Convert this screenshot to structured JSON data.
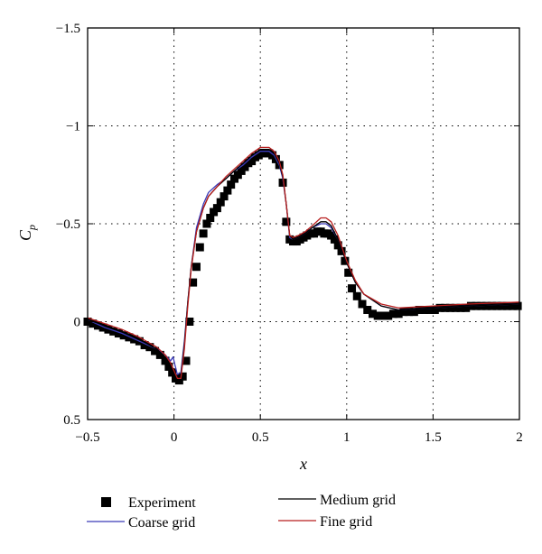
{
  "chart_data": {
    "type": "line",
    "title": "",
    "xlabel": "x",
    "ylabel": "C",
    "ylabel_subscript": "p",
    "xlim": [
      -0.5,
      2
    ],
    "ylim": [
      -1.5,
      0.5
    ],
    "y_inverted": true,
    "grid": true,
    "legend_position": "bottom",
    "x_ticks": [
      -0.5,
      0,
      0.5,
      1,
      1.5,
      2
    ],
    "x_tick_labels": [
      "−0.5",
      "0",
      "0.5",
      "1",
      "1.5",
      "2"
    ],
    "y_ticks": [
      -1.5,
      -1,
      -0.5,
      0,
      0.5
    ],
    "y_tick_labels": [
      "−1.5",
      "−1",
      "−0.5",
      "0",
      "0.5"
    ],
    "series": [
      {
        "name": "Experiment",
        "style": "markers",
        "color": "#000000",
        "x": [
          -0.5,
          -0.47,
          -0.44,
          -0.41,
          -0.38,
          -0.35,
          -0.32,
          -0.29,
          -0.26,
          -0.23,
          -0.2,
          -0.17,
          -0.14,
          -0.11,
          -0.08,
          -0.05,
          -0.03,
          -0.01,
          0.01,
          0.03,
          0.05,
          0.07,
          0.09,
          0.11,
          0.13,
          0.15,
          0.17,
          0.19,
          0.21,
          0.23,
          0.25,
          0.27,
          0.29,
          0.31,
          0.33,
          0.35,
          0.37,
          0.39,
          0.41,
          0.43,
          0.45,
          0.47,
          0.49,
          0.51,
          0.53,
          0.55,
          0.57,
          0.59,
          0.61,
          0.63,
          0.65,
          0.67,
          0.69,
          0.71,
          0.73,
          0.75,
          0.77,
          0.79,
          0.81,
          0.83,
          0.85,
          0.87,
          0.89,
          0.91,
          0.93,
          0.95,
          0.97,
          0.99,
          1.01,
          1.03,
          1.06,
          1.09,
          1.12,
          1.15,
          1.18,
          1.21,
          1.24,
          1.27,
          1.3,
          1.33,
          1.36,
          1.39,
          1.42,
          1.45,
          1.48,
          1.51,
          1.54,
          1.57,
          1.6,
          1.63,
          1.66,
          1.69,
          1.72,
          1.75,
          1.78,
          1.81,
          1.84,
          1.87,
          1.9,
          1.93,
          1.96,
          1.99
        ],
        "y": [
          0.0,
          0.01,
          0.02,
          0.03,
          0.04,
          0.05,
          0.06,
          0.07,
          0.08,
          0.09,
          0.1,
          0.12,
          0.13,
          0.15,
          0.17,
          0.2,
          0.23,
          0.26,
          0.29,
          0.3,
          0.28,
          0.2,
          0.0,
          -0.2,
          -0.28,
          -0.38,
          -0.45,
          -0.5,
          -0.53,
          -0.56,
          -0.58,
          -0.61,
          -0.64,
          -0.67,
          -0.7,
          -0.73,
          -0.75,
          -0.77,
          -0.79,
          -0.81,
          -0.82,
          -0.84,
          -0.85,
          -0.86,
          -0.86,
          -0.86,
          -0.85,
          -0.83,
          -0.8,
          -0.71,
          -0.51,
          -0.42,
          -0.41,
          -0.41,
          -0.42,
          -0.43,
          -0.44,
          -0.45,
          -0.45,
          -0.46,
          -0.46,
          -0.45,
          -0.45,
          -0.44,
          -0.42,
          -0.39,
          -0.36,
          -0.31,
          -0.25,
          -0.17,
          -0.13,
          -0.09,
          -0.06,
          -0.04,
          -0.03,
          -0.03,
          -0.03,
          -0.04,
          -0.04,
          -0.05,
          -0.05,
          -0.05,
          -0.06,
          -0.06,
          -0.06,
          -0.06,
          -0.07,
          -0.07,
          -0.07,
          -0.07,
          -0.07,
          -0.07,
          -0.08,
          -0.08,
          -0.08,
          -0.08,
          -0.08,
          -0.08,
          -0.08,
          -0.08,
          -0.08,
          -0.08
        ]
      },
      {
        "name": "Coarse grid",
        "style": "line",
        "color": "#3a3ab8",
        "x": [
          -0.5,
          -0.4,
          -0.3,
          -0.2,
          -0.1,
          -0.05,
          -0.02,
          -0.005,
          0.005,
          0.02,
          0.04,
          0.06,
          0.08,
          0.1,
          0.13,
          0.17,
          0.2,
          0.25,
          0.3,
          0.35,
          0.4,
          0.45,
          0.5,
          0.55,
          0.58,
          0.61,
          0.63,
          0.65,
          0.67,
          0.69,
          0.72,
          0.76,
          0.8,
          0.85,
          0.88,
          0.91,
          0.95,
          1.0,
          1.05,
          1.1,
          1.2,
          1.3,
          1.5,
          1.7,
          2.0
        ],
        "y": [
          -0.01,
          0.03,
          0.06,
          0.1,
          0.14,
          0.17,
          0.2,
          0.18,
          0.22,
          0.27,
          0.26,
          0.1,
          -0.1,
          -0.28,
          -0.48,
          -0.6,
          -0.66,
          -0.7,
          -0.73,
          -0.77,
          -0.8,
          -0.84,
          -0.87,
          -0.87,
          -0.85,
          -0.8,
          -0.73,
          -0.6,
          -0.43,
          -0.42,
          -0.43,
          -0.45,
          -0.48,
          -0.5,
          -0.5,
          -0.48,
          -0.42,
          -0.3,
          -0.2,
          -0.14,
          -0.08,
          -0.06,
          -0.07,
          -0.08,
          -0.09
        ]
      },
      {
        "name": "Medium grid",
        "style": "line",
        "color": "#000000",
        "x": [
          -0.5,
          -0.4,
          -0.3,
          -0.2,
          -0.1,
          -0.05,
          -0.02,
          0.0,
          0.02,
          0.04,
          0.06,
          0.08,
          0.1,
          0.13,
          0.17,
          0.2,
          0.25,
          0.3,
          0.35,
          0.4,
          0.45,
          0.5,
          0.55,
          0.58,
          0.61,
          0.63,
          0.65,
          0.67,
          0.69,
          0.72,
          0.76,
          0.8,
          0.85,
          0.88,
          0.91,
          0.95,
          1.0,
          1.05,
          1.1,
          1.2,
          1.3,
          1.5,
          1.7,
          2.0
        ],
        "y": [
          -0.01,
          0.02,
          0.05,
          0.09,
          0.14,
          0.18,
          0.22,
          0.26,
          0.29,
          0.28,
          0.12,
          -0.1,
          -0.28,
          -0.46,
          -0.58,
          -0.64,
          -0.69,
          -0.73,
          -0.77,
          -0.81,
          -0.85,
          -0.88,
          -0.88,
          -0.86,
          -0.81,
          -0.74,
          -0.6,
          -0.44,
          -0.42,
          -0.43,
          -0.45,
          -0.48,
          -0.51,
          -0.51,
          -0.49,
          -0.42,
          -0.3,
          -0.2,
          -0.14,
          -0.08,
          -0.06,
          -0.07,
          -0.08,
          -0.09
        ]
      },
      {
        "name": "Fine grid",
        "style": "line",
        "color": "#b81e1e",
        "x": [
          -0.5,
          -0.4,
          -0.3,
          -0.2,
          -0.1,
          -0.05,
          -0.02,
          0.0,
          0.02,
          0.04,
          0.06,
          0.08,
          0.1,
          0.13,
          0.17,
          0.2,
          0.25,
          0.3,
          0.35,
          0.4,
          0.45,
          0.5,
          0.55,
          0.58,
          0.61,
          0.63,
          0.65,
          0.67,
          0.69,
          0.72,
          0.76,
          0.8,
          0.85,
          0.88,
          0.91,
          0.95,
          1.0,
          1.05,
          1.1,
          1.2,
          1.3,
          1.5,
          1.7,
          2.0
        ],
        "y": [
          -0.02,
          0.01,
          0.04,
          0.08,
          0.13,
          0.17,
          0.21,
          0.25,
          0.29,
          0.29,
          0.14,
          -0.08,
          -0.27,
          -0.46,
          -0.58,
          -0.64,
          -0.69,
          -0.74,
          -0.78,
          -0.82,
          -0.86,
          -0.89,
          -0.89,
          -0.87,
          -0.82,
          -0.75,
          -0.6,
          -0.44,
          -0.43,
          -0.44,
          -0.46,
          -0.49,
          -0.53,
          -0.53,
          -0.51,
          -0.44,
          -0.31,
          -0.21,
          -0.14,
          -0.09,
          -0.07,
          -0.08,
          -0.09,
          -0.1
        ]
      }
    ]
  }
}
